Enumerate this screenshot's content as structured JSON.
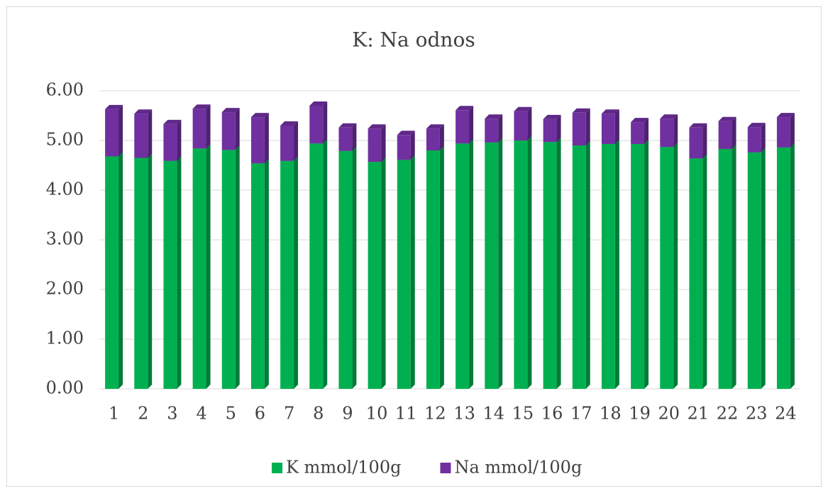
{
  "chart_data": {
    "type": "bar",
    "stacked": true,
    "title": "K: Na odnos",
    "categories": [
      "1",
      "2",
      "3",
      "4",
      "5",
      "6",
      "7",
      "8",
      "9",
      "10",
      "11",
      "12",
      "13",
      "14",
      "15",
      "16",
      "17",
      "18",
      "19",
      "20",
      "21",
      "22",
      "23",
      "24"
    ],
    "series": [
      {
        "name": "K mmol/100g",
        "color": "#00b050",
        "values": [
          4.68,
          4.65,
          4.59,
          4.84,
          4.81,
          4.54,
          4.59,
          4.94,
          4.79,
          4.57,
          4.61,
          4.8,
          4.94,
          4.96,
          5.0,
          4.97,
          4.9,
          4.93,
          4.93,
          4.87,
          4.64,
          4.83,
          4.76,
          4.86
        ]
      },
      {
        "name": "Na mmol/100g",
        "color": "#7030a0",
        "values": [
          0.95,
          0.89,
          0.74,
          0.8,
          0.76,
          0.93,
          0.71,
          0.76,
          0.47,
          0.67,
          0.5,
          0.44,
          0.67,
          0.48,
          0.59,
          0.46,
          0.66,
          0.61,
          0.44,
          0.57,
          0.62,
          0.56,
          0.51,
          0.61
        ]
      }
    ],
    "ylim": [
      0,
      6
    ],
    "yticks": [
      {
        "value": 0,
        "label": "0.00"
      },
      {
        "value": 1,
        "label": "1.00"
      },
      {
        "value": 2,
        "label": "2.00"
      },
      {
        "value": 3,
        "label": "3.00"
      },
      {
        "value": 4,
        "label": "4.00"
      },
      {
        "value": 5,
        "label": "5.00"
      },
      {
        "value": 6,
        "label": "6.00"
      }
    ],
    "grid": true,
    "legend": "bottom"
  }
}
